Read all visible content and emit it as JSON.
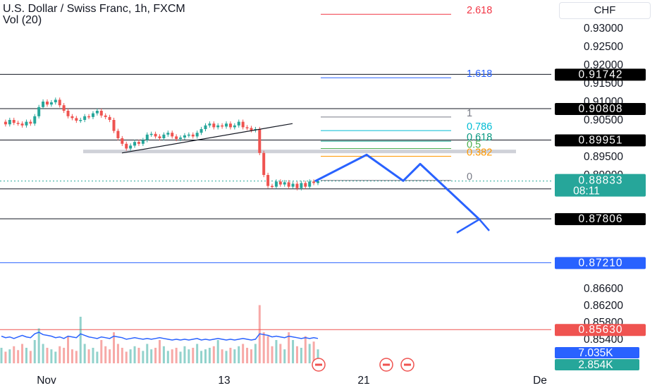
{
  "header": {
    "title": "U.S. Dollar / Swiss Franc, 1h, FXCM",
    "indicator": "Vol (20)"
  },
  "currency_button": "CHF",
  "colors": {
    "bull": "#26a69a",
    "bear": "#ef5350",
    "drawing_blue": "#2962ff",
    "level_line": "#131722",
    "fib_1618": "#2962ff",
    "fib_1": "#787b86",
    "fib_0786": "#00bcd4",
    "fib_0618": "#089981",
    "fib_05": "#4caf50",
    "fib_0382": "#ff9800",
    "fib_0": "#787b86",
    "fib_top": "#f23645"
  },
  "chart_data": {
    "type": "candlestick",
    "symbol": "U.S. Dollar / Swiss Franc",
    "interval": "1h",
    "source": "FXCM",
    "y_axis": {
      "range": [
        0.8515,
        0.9345
      ],
      "ticks": [
        "0.93000",
        "0.92500",
        "0.92000",
        "0.91500",
        "0.91000",
        "0.90500",
        "0.89500",
        "0.89000",
        "0.86600",
        "0.86200",
        "0.85800",
        "0.85400"
      ],
      "tick_values": [
        0.93,
        0.925,
        0.92,
        0.915,
        0.91,
        0.905,
        0.895,
        0.89,
        0.866,
        0.862,
        0.858,
        0.854
      ]
    },
    "x_axis": {
      "labels": [
        "Nov",
        "13",
        "21",
        "De"
      ]
    },
    "price_levels": [
      {
        "label": "0.91742",
        "value": 0.91742,
        "style": "black"
      },
      {
        "label": "0.90808",
        "value": 0.90808,
        "style": "black"
      },
      {
        "label": "0.89951",
        "value": 0.89951,
        "style": "black"
      },
      {
        "label": "0.88619",
        "value": 0.88619,
        "style": "black"
      },
      {
        "label": "0.87806",
        "value": 0.87806,
        "style": "black"
      },
      {
        "label": "0.87210",
        "value": 0.8721,
        "style": "blue"
      },
      {
        "label": "0.85630",
        "value": 0.8563,
        "style": "red"
      }
    ],
    "last_price": {
      "label": "0.88833",
      "value": 0.88833,
      "countdown": "08:11"
    },
    "fibonacci": [
      {
        "label": "2.618",
        "value": 0.9338
      },
      {
        "label": "1.618",
        "value": 0.9165
      },
      {
        "label": "1",
        "value": 0.9058
      },
      {
        "label": "0.786",
        "value": 0.9021
      },
      {
        "label": "0.618",
        "value": 0.8992
      },
      {
        "label": "0.5",
        "value": 0.8972
      },
      {
        "label": "0.382",
        "value": 0.8951
      },
      {
        "label": "0",
        "value": 0.8885
      }
    ],
    "volume_labels": [
      {
        "label": "7.035K",
        "style": "blue"
      },
      {
        "label": "2.854K",
        "style": "green"
      }
    ],
    "price_path": [
      0.9045,
      0.9038,
      0.905,
      0.9042,
      0.904,
      0.9035,
      0.9045,
      0.904,
      0.906,
      0.9085,
      0.91,
      0.9092,
      0.9098,
      0.9105,
      0.909,
      0.9075,
      0.906,
      0.9055,
      0.9048,
      0.905,
      0.906,
      0.9058,
      0.9068,
      0.9075,
      0.9062,
      0.9058,
      0.905,
      0.902,
      0.9,
      0.8985,
      0.8972,
      0.898,
      0.899,
      0.8985,
      0.8995,
      0.901,
      0.9012,
      0.9005,
      0.9,
      0.901,
      0.9015,
      0.9005,
      0.8998,
      0.9002,
      0.9008,
      0.901,
      0.9005,
      0.9015,
      0.9025,
      0.9035,
      0.904,
      0.903,
      0.9035,
      0.9032,
      0.904,
      0.903,
      0.9035,
      0.9045,
      0.903,
      0.9028,
      0.9022,
      0.9025,
      0.896,
      0.89,
      0.887,
      0.8868,
      0.8882,
      0.8874,
      0.888,
      0.8868,
      0.8876,
      0.8864,
      0.8878,
      0.8868,
      0.8882,
      0.8878,
      0.8883
    ],
    "volume": [
      0.2,
      0.15,
      0.18,
      0.22,
      0.17,
      0.25,
      0.2,
      0.16,
      0.3,
      0.45,
      0.25,
      0.2,
      0.18,
      0.15,
      0.22,
      0.2,
      0.35,
      0.18,
      0.16,
      0.6,
      0.25,
      0.18,
      0.2,
      0.15,
      0.3,
      0.22,
      0.18,
      0.4,
      0.25,
      0.2,
      0.15,
      0.18,
      0.22,
      0.2,
      0.16,
      0.25,
      0.18,
      0.2,
      0.3,
      0.22,
      0.16,
      0.18,
      0.2,
      0.15,
      0.22,
      0.18,
      0.2,
      0.25,
      0.16,
      0.18,
      0.2,
      0.22,
      0.3,
      0.18,
      0.16,
      0.2,
      0.18,
      0.22,
      0.25,
      0.2,
      0.18,
      0.25,
      0.75,
      0.4,
      0.35,
      0.22,
      0.3,
      0.25,
      0.18,
      0.4,
      0.3,
      0.22,
      0.2,
      0.35,
      0.25,
      0.28,
      0.18
    ],
    "volume_ma": [
      0.35,
      0.33,
      0.34,
      0.32,
      0.34,
      0.36,
      0.34,
      0.33,
      0.38,
      0.4,
      0.37,
      0.36,
      0.35,
      0.33,
      0.34,
      0.32,
      0.35,
      0.34,
      0.33,
      0.38,
      0.36,
      0.34,
      0.33,
      0.32,
      0.34,
      0.33,
      0.32,
      0.35,
      0.34,
      0.33,
      0.31,
      0.32,
      0.33,
      0.32,
      0.31,
      0.32,
      0.31,
      0.32,
      0.33,
      0.32,
      0.31,
      0.3,
      0.31,
      0.3,
      0.31,
      0.3,
      0.31,
      0.32,
      0.3,
      0.31,
      0.3,
      0.31,
      0.32,
      0.31,
      0.3,
      0.31,
      0.3,
      0.31,
      0.32,
      0.31,
      0.3,
      0.31,
      0.38,
      0.37,
      0.36,
      0.34,
      0.35,
      0.34,
      0.33,
      0.35,
      0.34,
      0.33,
      0.32,
      0.33,
      0.32,
      0.33,
      0.32
    ],
    "projection_path": [
      0.8883,
      0.8955,
      0.8884,
      0.893,
      0.8779
    ],
    "trendline": [
      0.896,
      0.904
    ],
    "support_zone": 0.8965
  }
}
